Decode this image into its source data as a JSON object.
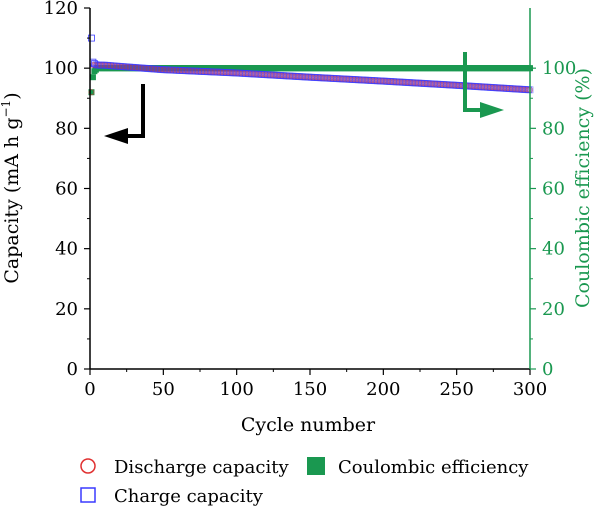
{
  "chart_data": {
    "type": "scatter",
    "xlabel": "Cycle number",
    "ylabel_left": "Capacity (mA h g",
    "ylabel_left_sup": "−1",
    "ylabel_left_end": ")",
    "ylabel_right": "Coulombic efficiency (%)",
    "xlim": [
      0,
      300
    ],
    "ylim_left": [
      0,
      120
    ],
    "ylim_right": [
      0,
      120
    ],
    "x_ticks": [
      0,
      50,
      100,
      150,
      200,
      250,
      300
    ],
    "y_ticks_left": [
      0,
      20,
      40,
      60,
      80,
      100,
      120
    ],
    "y_ticks_right": [
      0,
      20,
      40,
      60,
      80,
      100
    ],
    "grid": false,
    "legend_placement": "bottom",
    "series": [
      {
        "name": "Discharge capacity",
        "axis": "left",
        "marker": "open-circle",
        "color": "#e03030",
        "x": [
          1,
          2,
          3,
          4,
          5,
          10,
          20,
          50,
          100,
          150,
          200,
          250,
          300
        ],
        "y": [
          92,
          101,
          101,
          101,
          101,
          101,
          100.6,
          99.5,
          98.4,
          97.0,
          95.7,
          94.3,
          92.8
        ]
      },
      {
        "name": "Charge capacity",
        "axis": "left",
        "marker": "open-square",
        "color": "#3a3aff",
        "x": [
          1,
          2,
          3,
          4,
          5,
          10,
          20,
          50,
          100,
          150,
          200,
          250,
          300
        ],
        "y": [
          110,
          102,
          101.5,
          101.2,
          101,
          101,
          100.6,
          99.5,
          98.4,
          97.0,
          95.7,
          94.3,
          92.8
        ]
      },
      {
        "name": "Coulombic efficiency",
        "axis": "right",
        "marker": "filled-square",
        "color": "#1a9850",
        "x": [
          1,
          2,
          3,
          4,
          5,
          10,
          20,
          50,
          100,
          150,
          200,
          250,
          300
        ],
        "y": [
          92,
          97,
          99,
          99.5,
          100,
          100,
          100,
          100,
          100,
          100,
          100,
          100,
          100
        ]
      }
    ],
    "axis_colors": {
      "left": "#000000",
      "right": "#1a9850"
    }
  }
}
